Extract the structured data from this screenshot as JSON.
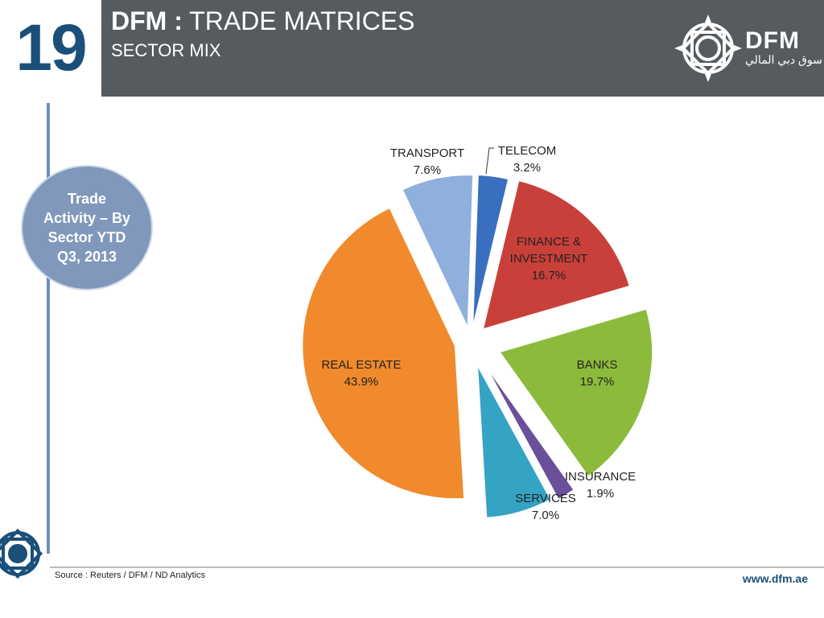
{
  "slide": {
    "number": "19",
    "title_brand": "DFM :",
    "title_rest": " TRADE MATRICES",
    "subtitle": "SECTOR MIX",
    "logo_text": "DFM",
    "logo_arabic": "سوق دبي المالي"
  },
  "badge": {
    "text": "Trade Activity – By Sector YTD Q3, 2013"
  },
  "footer": {
    "source": "Source :  Reuters / DFM / ND Analytics",
    "website": "www.dfm.ae"
  },
  "chart_data": {
    "type": "pie",
    "title": "",
    "slices": [
      {
        "name": "TELECOM",
        "value_label": "3.2%",
        "value": 3.2,
        "color": "#3a6fbf"
      },
      {
        "name": "FINANCE &",
        "name2": "INVESTMENT",
        "value_label": "16.7%",
        "value": 16.7,
        "color": "#c9403a"
      },
      {
        "name": "BANKS",
        "value_label": "19.7%",
        "value": 19.7,
        "color": "#8cbb3c"
      },
      {
        "name": "INSURANCE",
        "value_label": "1.9%",
        "value": 1.9,
        "color": "#6a4f9a"
      },
      {
        "name": "SERVICES",
        "value_label": "7.0%",
        "value": 7.0,
        "color": "#35a3c4"
      },
      {
        "name": "REAL ESTATE",
        "value_label": "43.9%",
        "value": 43.9,
        "color": "#f08a2c"
      },
      {
        "name": "TRANSPORT",
        "value_label": "7.6%",
        "value": 7.6,
        "color": "#8fb0dc"
      }
    ]
  }
}
